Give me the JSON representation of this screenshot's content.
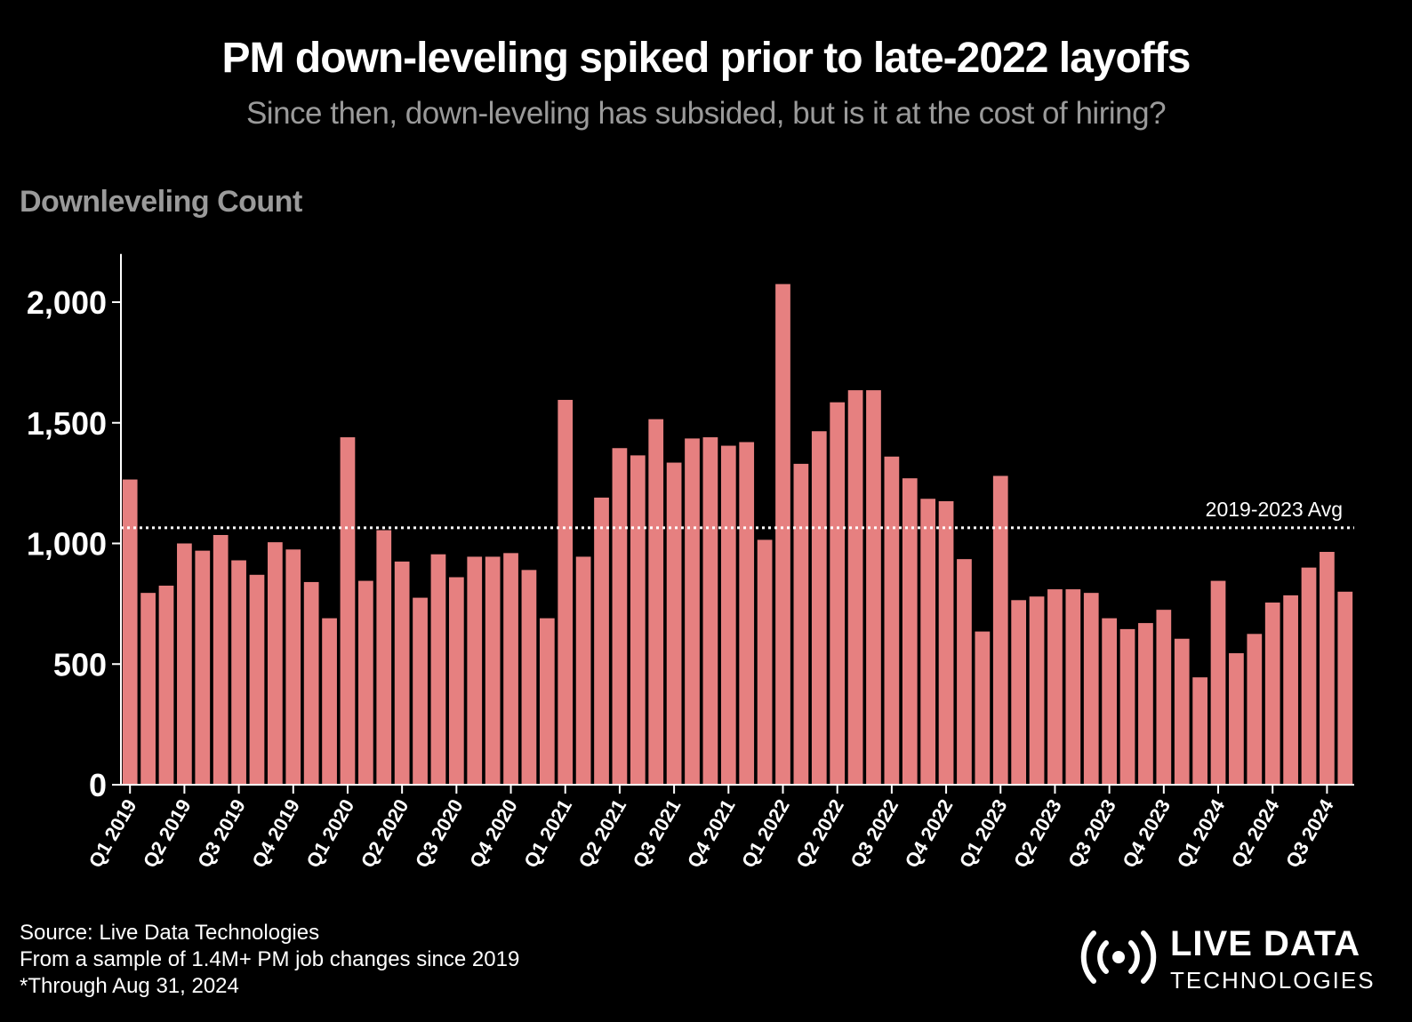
{
  "title": "PM down-leveling spiked prior to late-2022 layoffs",
  "subtitle": "Since then, down-leveling has subsided, but is it at the cost of hiring?",
  "footer": {
    "line1": "Source: Live Data Technologies",
    "line2": "From a sample of 1.4M+ PM job changes since 2019",
    "line3": "*Through Aug 31, 2024"
  },
  "logo": {
    "line1": "LIVE DATA",
    "line2": "TECHNOLOGIES",
    "icon": "broadcast-icon"
  },
  "colors": {
    "background": "#000000",
    "bar": "#e68080",
    "text": "#ffffff",
    "muted": "#9a9a9a"
  },
  "chart_data": {
    "type": "bar",
    "ylabel": "Downleveling Count",
    "ylim": [
      0,
      2200
    ],
    "yticks": [
      0,
      500,
      1000,
      1500,
      2000
    ],
    "ytick_labels": [
      "0",
      "500",
      "1,000",
      "1,500",
      "2,000"
    ],
    "grid": false,
    "xtick_labels": [
      "Q1 2019",
      "Q2 2019",
      "Q3 2019",
      "Q4 2019",
      "Q1 2020",
      "Q2 2020",
      "Q3 2020",
      "Q4 2020",
      "Q1 2021",
      "Q2 2021",
      "Q3 2021",
      "Q4 2021",
      "Q1 2022",
      "Q2 2022",
      "Q3 2022",
      "Q4 2022",
      "Q1 2023",
      "Q2 2023",
      "Q3 2023",
      "Q4 2023",
      "Q1 2024",
      "Q2 2024",
      "Q3 2024"
    ],
    "xtick_bar_index": [
      0,
      3,
      6,
      9,
      12,
      15,
      18,
      21,
      24,
      27,
      30,
      33,
      36,
      39,
      42,
      45,
      48,
      51,
      54,
      57,
      60,
      63,
      66
    ],
    "values": [
      1265,
      795,
      825,
      1000,
      970,
      1035,
      930,
      870,
      1005,
      975,
      840,
      690,
      1440,
      845,
      1055,
      925,
      775,
      955,
      860,
      945,
      945,
      960,
      890,
      690,
      1595,
      945,
      1190,
      1395,
      1365,
      1515,
      1335,
      1435,
      1440,
      1405,
      1420,
      1015,
      2075,
      1330,
      1465,
      1585,
      1635,
      1635,
      1360,
      1270,
      1185,
      1175,
      935,
      635,
      1280,
      765,
      780,
      810,
      810,
      795,
      690,
      645,
      670,
      725,
      605,
      445,
      845,
      545,
      625,
      755,
      785,
      900,
      965,
      800
    ],
    "reference_line": {
      "label": "2019-2023 Avg",
      "value": 1065,
      "style": "dotted"
    }
  }
}
